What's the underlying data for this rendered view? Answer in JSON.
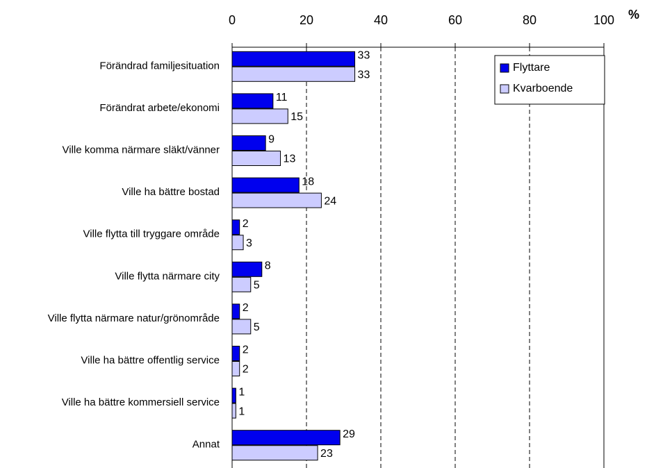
{
  "chart_data": {
    "type": "hbar",
    "x_label": "%",
    "categories": [
      "Förändrad familjesituation",
      "Förändrat arbete/ekonomi",
      "Ville komma närmare släkt/vänner",
      "Ville ha bättre bostad",
      "Ville flytta till tryggare område",
      "Ville flytta närmare city",
      "Ville flytta närmare natur/grönområde",
      "Ville ha bättre offentlig service",
      "Ville ha bättre kommersiell service",
      "Annat"
    ],
    "series": [
      {
        "name": "Flyttare",
        "color": "#0000ee",
        "values": [
          33,
          11,
          9,
          18,
          2,
          8,
          2,
          2,
          1,
          29
        ]
      },
      {
        "name": "Kvarboende",
        "color": "#ccccff",
        "values": [
          33,
          15,
          13,
          24,
          3,
          5,
          5,
          2,
          1,
          23
        ]
      }
    ],
    "xlim": [
      0,
      100
    ],
    "xticks": [
      0,
      20,
      40,
      60,
      80,
      100
    ],
    "grid": true,
    "legend": "top-right"
  }
}
